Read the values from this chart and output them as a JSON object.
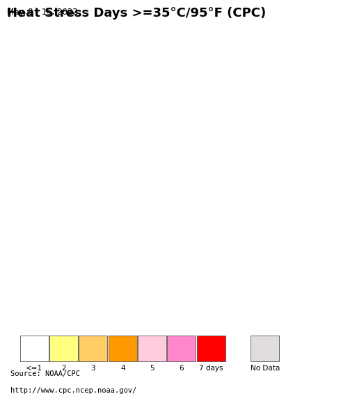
{
  "title": "Heat Stress Days >=35°C/95°F (CPC)",
  "subtitle": "May. 9 - 15, 2022",
  "source_line1": "Source: NOAA/CPC",
  "source_line2": "http://www.cpc.ncep.noaa.gov/",
  "legend_labels": [
    "<=1",
    "2",
    "3",
    "4",
    "5",
    "6",
    "7 days",
    "No Data"
  ],
  "legend_colors": [
    "#ffffff",
    "#ffff80",
    "#ffcc66",
    "#ff9900",
    "#ffccdd",
    "#ff88cc",
    "#ff0000",
    "#e0dce0"
  ],
  "map_extent": [
    50,
    105,
    5,
    40
  ],
  "ocean_color": "#aaddee",
  "land_color": "#d4cfc8",
  "border_color": "#999999",
  "country_border_color": "#444444",
  "background_color": "#ffffff",
  "title_fontsize": 13,
  "subtitle_fontsize": 8.5,
  "source_fontsize": 7.5,
  "fig_width": 4.8,
  "fig_height": 5.61,
  "dpi": 100
}
